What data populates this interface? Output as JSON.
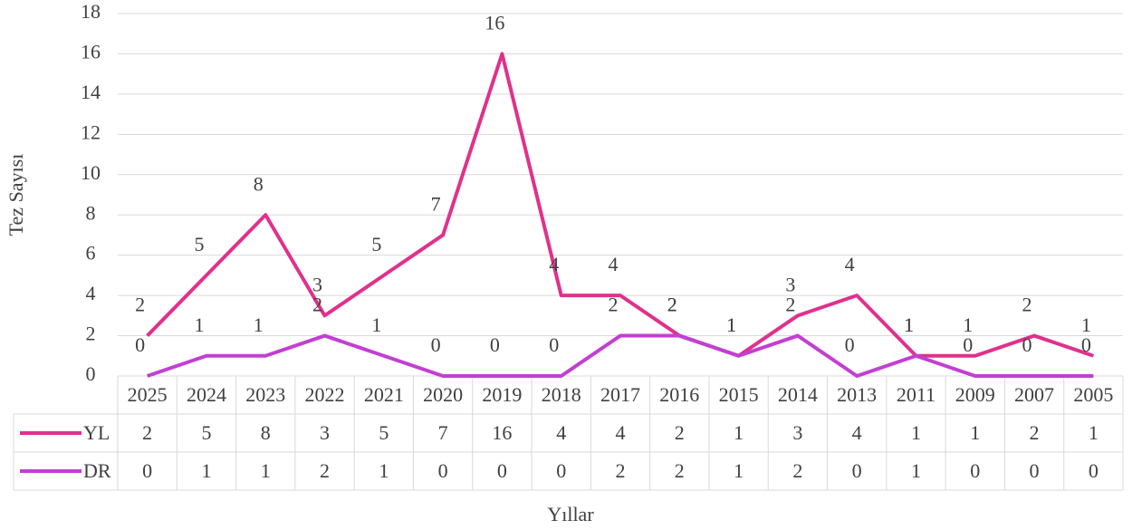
{
  "chart_data": {
    "type": "line",
    "x_label": "Yıllar",
    "y_label": "Tez Sayısı",
    "categories": [
      "2025",
      "2024",
      "2023",
      "2022",
      "2021",
      "2020",
      "2019",
      "2018",
      "2017",
      "2016",
      "2015",
      "2014",
      "2013",
      "2011",
      "2009",
      "2007",
      "2005"
    ],
    "series": [
      {
        "name": "YL",
        "color": "#e0318c",
        "values": [
          2,
          5,
          8,
          3,
          5,
          7,
          16,
          4,
          4,
          2,
          1,
          3,
          4,
          1,
          1,
          2,
          1
        ]
      },
      {
        "name": "DR",
        "color": "#c23fd3",
        "values": [
          0,
          1,
          1,
          2,
          1,
          0,
          0,
          0,
          2,
          2,
          1,
          2,
          0,
          1,
          0,
          0,
          0
        ]
      }
    ],
    "ylim": [
      0,
      18
    ],
    "yticks": [
      0,
      2,
      4,
      6,
      8,
      10,
      12,
      14,
      16,
      18
    ],
    "grid": true,
    "data_table": true
  }
}
